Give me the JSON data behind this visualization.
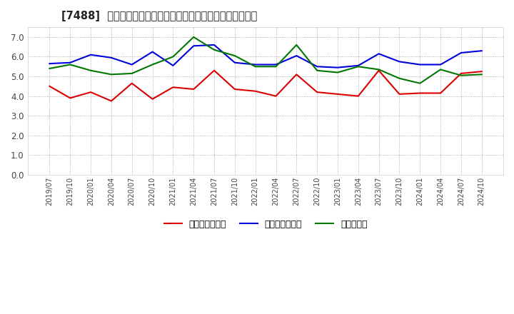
{
  "title": "[7488]  売上債権回転率、買入債務回転率、在庫回転率の推移",
  "x_labels": [
    "2019/07",
    "2019/10",
    "2020/01",
    "2020/04",
    "2020/07",
    "2020/10",
    "2021/01",
    "2021/04",
    "2021/07",
    "2021/10",
    "2022/01",
    "2022/04",
    "2022/07",
    "2022/10",
    "2023/01",
    "2023/04",
    "2023/07",
    "2023/10",
    "2024/01",
    "2024/04",
    "2024/07",
    "2024/10"
  ],
  "uriage": [
    4.5,
    3.9,
    4.2,
    3.75,
    4.65,
    3.85,
    4.45,
    4.35,
    5.3,
    4.35,
    4.25,
    4.0,
    5.1,
    4.2,
    4.1,
    4.0,
    5.3,
    4.1,
    4.15,
    4.15,
    5.15,
    5.25
  ],
  "kainyu": [
    5.65,
    5.7,
    6.1,
    5.95,
    5.6,
    6.25,
    5.55,
    6.55,
    6.6,
    5.7,
    5.6,
    5.6,
    6.05,
    5.5,
    5.45,
    5.55,
    6.15,
    5.75,
    5.6,
    5.6,
    6.2,
    6.3
  ],
  "zaiko": [
    5.4,
    5.6,
    5.3,
    5.1,
    5.15,
    5.6,
    6.0,
    7.0,
    6.35,
    6.05,
    5.5,
    5.5,
    6.6,
    5.3,
    5.2,
    5.5,
    5.35,
    4.9,
    4.65,
    5.35,
    5.05,
    5.1
  ],
  "uriage_color": "#dd0000",
  "kainyu_color": "#0000dd",
  "zaiko_color": "#007700",
  "ylim": [
    0.0,
    7.5
  ],
  "yticks": [
    0.0,
    1.0,
    2.0,
    3.0,
    4.0,
    5.0,
    6.0,
    7.0
  ],
  "legend_uriage": "売上債権回転率",
  "legend_kainyu": "買入債務回転率",
  "legend_zaiko": "在庫回転率",
  "bg_color": "#ffffff",
  "plot_bg_color": "#ffffff",
  "grid_color": "#999999",
  "title_color": "#222222",
  "tick_color": "#444444"
}
